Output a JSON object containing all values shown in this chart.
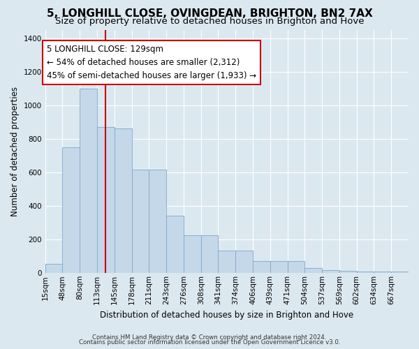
{
  "title": "5, LONGHILL CLOSE, OVINGDEAN, BRIGHTON, BN2 7AX",
  "subtitle": "Size of property relative to detached houses in Brighton and Hove",
  "xlabel": "Distribution of detached houses by size in Brighton and Hove",
  "ylabel": "Number of detached properties",
  "footer_line1": "Contains HM Land Registry data © Crown copyright and database right 2024.",
  "footer_line2": "Contains public sector information licensed under the Open Government Licence v3.0.",
  "annotation_line1": "5 LONGHILL CLOSE: 129sqm",
  "annotation_line2": "← 54% of detached houses are smaller (2,312)",
  "annotation_line3": "45% of semi-detached houses are larger (1,933) →",
  "bin_labels": [
    "15sqm",
    "48sqm",
    "80sqm",
    "113sqm",
    "145sqm",
    "178sqm",
    "211sqm",
    "243sqm",
    "276sqm",
    "308sqm",
    "341sqm",
    "374sqm",
    "406sqm",
    "439sqm",
    "471sqm",
    "504sqm",
    "537sqm",
    "569sqm",
    "602sqm",
    "634sqm",
    "667sqm"
  ],
  "bin_left_edges": [
    0,
    1,
    2,
    3,
    4,
    5,
    6,
    7,
    8,
    9,
    10,
    11,
    12,
    13,
    14,
    15,
    16,
    17,
    18,
    19,
    20
  ],
  "bar_heights": [
    55,
    750,
    1100,
    870,
    860,
    615,
    615,
    340,
    225,
    225,
    135,
    135,
    70,
    70,
    70,
    30,
    18,
    15,
    10,
    10,
    10
  ],
  "bar_color": "#c5d8ea",
  "bar_edge_color": "#7aaac8",
  "vline_bin": 3.5,
  "vline_color": "#cc0000",
  "ylim": [
    0,
    1450
  ],
  "yticks": [
    0,
    200,
    400,
    600,
    800,
    1000,
    1200,
    1400
  ],
  "bg_color": "#dce8f0",
  "grid_color": "#ffffff",
  "title_fontsize": 11,
  "subtitle_fontsize": 9.5,
  "axis_label_fontsize": 8.5,
  "tick_fontsize": 7.5,
  "annotation_fontsize": 8.5
}
